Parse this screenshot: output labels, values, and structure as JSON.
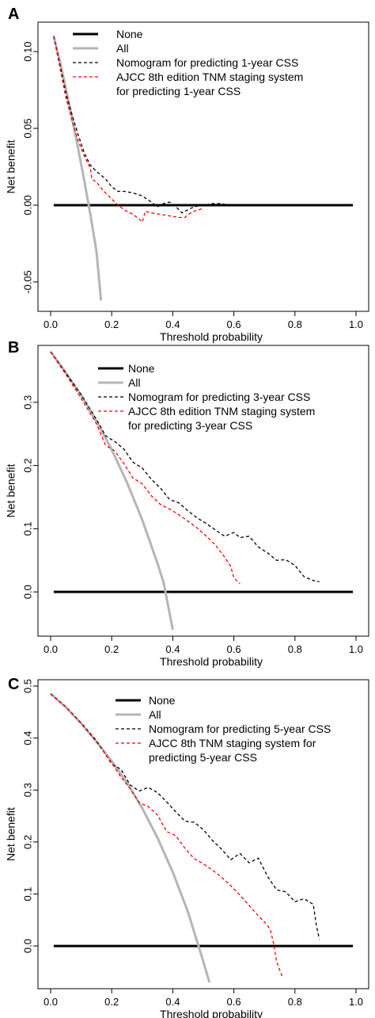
{
  "chart_data": [
    {
      "type": "line",
      "panel_label": "A",
      "xlabel": "Threshold probability",
      "ylabel": "Net benefit",
      "xlim": [
        0,
        1
      ],
      "ylim": [
        -0.065,
        0.115
      ],
      "xticks": [
        "0.0",
        "0.2",
        "0.4",
        "0.6",
        "0.8",
        "1.0"
      ],
      "xtick_values": [
        0,
        0.2,
        0.4,
        0.6,
        0.8,
        1.0
      ],
      "yticks": [
        "-0.05",
        "0.00",
        "0.05",
        "0.10"
      ],
      "ytick_values": [
        -0.05,
        0,
        0.05,
        0.1
      ],
      "grid": false,
      "legend_position": "top-right",
      "series": [
        {
          "name": "None",
          "style": "solid",
          "color": "#000000",
          "width": 3,
          "x": [
            0.01,
            0.99
          ],
          "y": [
            0,
            0
          ]
        },
        {
          "name": "All",
          "style": "solid",
          "color": "#b5b5b5",
          "width": 3,
          "x": [
            0.01,
            0.03,
            0.05,
            0.07,
            0.09,
            0.11,
            0.13,
            0.15,
            0.165
          ],
          "y": [
            0.11,
            0.094,
            0.076,
            0.057,
            0.037,
            0.016,
            -0.006,
            -0.03,
            -0.062
          ]
        },
        {
          "name": "Nomogram for predicting 1-year CSS",
          "style": "dashed",
          "color": "#000000",
          "width": 1.3,
          "x": [
            0.01,
            0.03,
            0.05,
            0.07,
            0.09,
            0.11,
            0.13,
            0.15,
            0.18,
            0.2,
            0.22,
            0.24,
            0.27,
            0.3,
            0.33,
            0.35,
            0.37,
            0.39,
            0.41,
            0.43,
            0.45,
            0.47,
            0.5,
            0.53,
            0.56,
            0.58,
            0.6,
            0.62
          ],
          "y": [
            0.11,
            0.092,
            0.073,
            0.059,
            0.046,
            0.034,
            0.026,
            0.022,
            0.017,
            0.012,
            0.009,
            0.009,
            0.008,
            0.006,
            0.002,
            -0.001,
            0.001,
            0.002,
            -0.001,
            -0.005,
            -0.003,
            -0.001,
            0.0,
            0.001,
            0.001,
            0.0,
            0.0,
            0.0
          ]
        },
        {
          "name": "AJCC 8th edition TNM staging system for predicting 1-year CSS",
          "style": "dashed",
          "color": "#ff0000",
          "width": 1.3,
          "x": [
            0.01,
            0.03,
            0.05,
            0.07,
            0.09,
            0.11,
            0.13,
            0.135,
            0.15,
            0.17,
            0.19,
            0.21,
            0.24,
            0.27,
            0.29,
            0.3,
            0.31,
            0.33,
            0.36,
            0.39,
            0.42,
            0.44,
            0.45,
            0.47,
            0.5
          ],
          "y": [
            0.11,
            0.09,
            0.07,
            0.055,
            0.042,
            0.032,
            0.024,
            0.017,
            0.015,
            0.01,
            0.006,
            0.002,
            -0.003,
            -0.006,
            -0.009,
            -0.011,
            -0.004,
            -0.005,
            -0.006,
            -0.007,
            -0.008,
            -0.008,
            -0.006,
            -0.004,
            -0.002
          ]
        }
      ]
    },
    {
      "type": "line",
      "panel_label": "B",
      "xlabel": "Threshold probability",
      "ylabel": "Net benefit",
      "xlim": [
        0,
        1
      ],
      "ylim": [
        -0.06,
        0.38
      ],
      "xticks": [
        "0.0",
        "0.2",
        "0.4",
        "0.6",
        "0.8",
        "1.0"
      ],
      "xtick_values": [
        0,
        0.2,
        0.4,
        0.6,
        0.8,
        1.0
      ],
      "yticks": [
        "0.0",
        "0.1",
        "0.2",
        "0.3"
      ],
      "ytick_values": [
        0,
        0.1,
        0.2,
        0.3
      ],
      "grid": false,
      "legend_position": "top-right",
      "series": [
        {
          "name": "None",
          "style": "solid",
          "color": "#000000",
          "width": 3,
          "x": [
            0.01,
            0.99
          ],
          "y": [
            0,
            0
          ]
        },
        {
          "name": "All",
          "style": "solid",
          "color": "#b5b5b5",
          "width": 3,
          "x": [
            0.0,
            0.05,
            0.1,
            0.15,
            0.2,
            0.25,
            0.3,
            0.35,
            0.37,
            0.4
          ],
          "y": [
            0.38,
            0.347,
            0.311,
            0.27,
            0.225,
            0.173,
            0.114,
            0.045,
            0.015,
            -0.06
          ]
        },
        {
          "name": "Nomogram for predicting 3-year CSS",
          "style": "dashed",
          "color": "#000000",
          "width": 1.3,
          "x": [
            0.0,
            0.05,
            0.1,
            0.15,
            0.18,
            0.21,
            0.24,
            0.27,
            0.3,
            0.33,
            0.36,
            0.39,
            0.42,
            0.45,
            0.48,
            0.51,
            0.54,
            0.57,
            0.6,
            0.62,
            0.65,
            0.68,
            0.71,
            0.74,
            0.77,
            0.8,
            0.83,
            0.86,
            0.88
          ],
          "y": [
            0.38,
            0.346,
            0.312,
            0.273,
            0.247,
            0.238,
            0.226,
            0.205,
            0.196,
            0.178,
            0.164,
            0.146,
            0.141,
            0.128,
            0.117,
            0.108,
            0.098,
            0.088,
            0.094,
            0.086,
            0.088,
            0.071,
            0.062,
            0.05,
            0.051,
            0.042,
            0.024,
            0.018,
            0.016
          ]
        },
        {
          "name": "AJCC 8th edition TNM staging system for predicting 3-year CSS",
          "style": "dashed",
          "color": "#ff0000",
          "width": 1.3,
          "x": [
            0.0,
            0.05,
            0.1,
            0.15,
            0.18,
            0.21,
            0.24,
            0.27,
            0.3,
            0.33,
            0.36,
            0.39,
            0.42,
            0.45,
            0.48,
            0.51,
            0.54,
            0.57,
            0.59,
            0.6,
            0.62
          ],
          "y": [
            0.38,
            0.344,
            0.306,
            0.266,
            0.232,
            0.223,
            0.203,
            0.18,
            0.171,
            0.152,
            0.138,
            0.131,
            0.122,
            0.112,
            0.101,
            0.088,
            0.074,
            0.055,
            0.04,
            0.022,
            0.013
          ]
        }
      ]
    },
    {
      "type": "line",
      "panel_label": "C",
      "xlabel": "Threshold probability",
      "ylabel": "Net benefit",
      "xlim": [
        0,
        1
      ],
      "ylim": [
        -0.07,
        0.5
      ],
      "xticks": [
        "0.0",
        "0.2",
        "0.4",
        "0.6",
        "0.8",
        "1.0"
      ],
      "xtick_values": [
        0,
        0.2,
        0.4,
        0.6,
        0.8,
        1.0
      ],
      "yticks": [
        "0.0",
        "0.1",
        "0.2",
        "0.3",
        "0.4",
        "0.5"
      ],
      "ytick_values": [
        0,
        0.1,
        0.2,
        0.3,
        0.4,
        0.5
      ],
      "grid": false,
      "legend_position": "top-right",
      "series": [
        {
          "name": "None",
          "style": "solid",
          "color": "#000000",
          "width": 3,
          "x": [
            0.01,
            0.99
          ],
          "y": [
            0,
            0
          ]
        },
        {
          "name": "All",
          "style": "solid",
          "color": "#b5b5b5",
          "width": 3,
          "x": [
            0.0,
            0.05,
            0.1,
            0.15,
            0.2,
            0.25,
            0.3,
            0.35,
            0.4,
            0.45,
            0.5,
            0.52
          ],
          "y": [
            0.485,
            0.459,
            0.428,
            0.393,
            0.356,
            0.314,
            0.265,
            0.208,
            0.142,
            0.065,
            -0.03,
            -0.07
          ]
        },
        {
          "name": "Nomogram for predicting 5-year CSS",
          "style": "dashed",
          "color": "#000000",
          "width": 1.3,
          "x": [
            0.0,
            0.05,
            0.1,
            0.15,
            0.2,
            0.23,
            0.26,
            0.29,
            0.32,
            0.35,
            0.38,
            0.41,
            0.44,
            0.47,
            0.5,
            0.53,
            0.56,
            0.59,
            0.62,
            0.65,
            0.68,
            0.71,
            0.74,
            0.77,
            0.8,
            0.83,
            0.86,
            0.87,
            0.88
          ],
          "y": [
            0.485,
            0.46,
            0.429,
            0.395,
            0.35,
            0.34,
            0.31,
            0.298,
            0.305,
            0.295,
            0.277,
            0.258,
            0.24,
            0.238,
            0.224,
            0.203,
            0.186,
            0.166,
            0.178,
            0.16,
            0.169,
            0.134,
            0.108,
            0.104,
            0.085,
            0.091,
            0.08,
            0.04,
            0.013
          ]
        },
        {
          "name": "AJCC 8th TNM staging system for predicting 5-year CSS",
          "style": "dashed",
          "color": "#ff0000",
          "width": 1.3,
          "x": [
            0.0,
            0.05,
            0.1,
            0.15,
            0.2,
            0.23,
            0.26,
            0.29,
            0.32,
            0.35,
            0.38,
            0.41,
            0.44,
            0.47,
            0.5,
            0.53,
            0.56,
            0.59,
            0.62,
            0.65,
            0.68,
            0.71,
            0.72,
            0.73,
            0.74,
            0.76
          ],
          "y": [
            0.485,
            0.46,
            0.428,
            0.393,
            0.352,
            0.325,
            0.303,
            0.276,
            0.268,
            0.252,
            0.22,
            0.212,
            0.188,
            0.168,
            0.158,
            0.146,
            0.132,
            0.116,
            0.098,
            0.078,
            0.058,
            0.04,
            0.03,
            0.005,
            -0.03,
            -0.062
          ]
        }
      ]
    }
  ]
}
